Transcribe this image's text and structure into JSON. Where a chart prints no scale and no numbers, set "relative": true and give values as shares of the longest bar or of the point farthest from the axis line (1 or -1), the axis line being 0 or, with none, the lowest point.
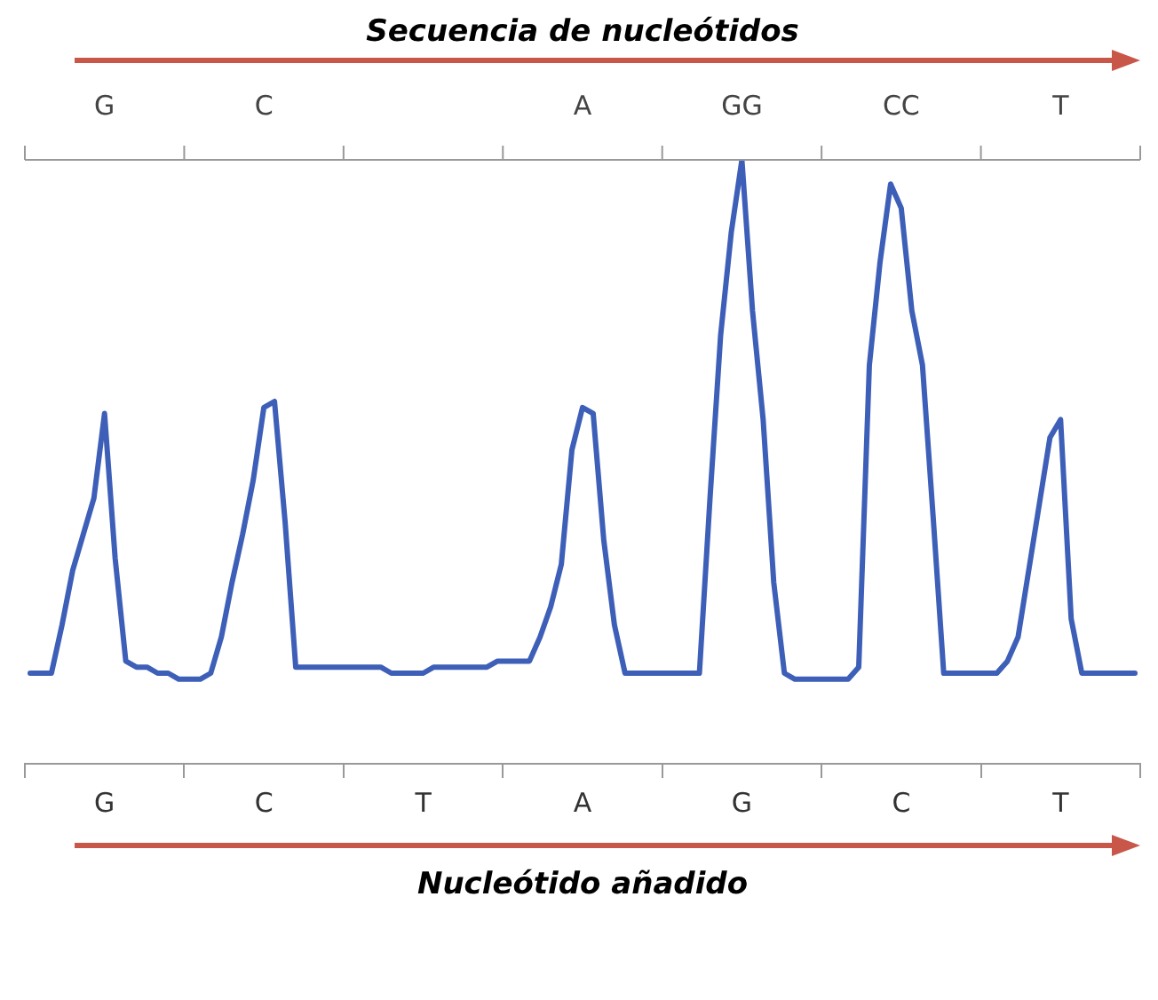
{
  "chart_data": {
    "type": "line",
    "relative": true,
    "x2label": "Secuencia de nucleótidos",
    "xlabel": "Nucleótido añadido",
    "categories": [
      null,
      null,
      null,
      null,
      null,
      null,
      null,
      "G",
      null,
      null,
      null,
      null,
      null,
      null,
      null,
      null,
      null,
      null,
      null,
      null,
      null,
      null,
      "C",
      null,
      null,
      null,
      null,
      null,
      null,
      null,
      null,
      null,
      null,
      null,
      null,
      null,
      null,
      "T",
      null,
      null,
      null,
      null,
      null,
      null,
      null,
      null,
      null,
      null,
      null,
      null,
      null,
      null,
      "A",
      null,
      null,
      null,
      null,
      null,
      null,
      null,
      null,
      null,
      null,
      null,
      null,
      null,
      null,
      "G",
      null,
      null,
      null,
      null,
      null,
      null,
      null,
      null,
      null,
      null,
      null,
      null,
      null,
      null,
      "C",
      null,
      null,
      null,
      null,
      null,
      null,
      null,
      null,
      null,
      null,
      null,
      null,
      null,
      null,
      "T",
      null,
      null,
      null,
      null,
      null,
      null,
      null
    ],
    "annotations": [
      "G",
      "C",
      "A",
      "GG",
      "CC",
      "T"
    ],
    "series": [
      {
        "color": "#3d5fb8",
        "values": [
          0.15,
          0.15,
          0.15,
          0.23,
          0.32,
          0.38,
          0.44,
          0.58,
          0.34,
          0.17,
          0.16,
          0.16,
          0.15,
          0.15,
          0.14,
          0.14,
          0.14,
          0.15,
          0.21,
          0.3,
          0.38,
          0.47,
          0.59,
          0.6,
          0.4,
          0.16,
          0.16,
          0.16,
          0.16,
          0.16,
          0.16,
          0.16,
          0.16,
          0.16,
          0.15,
          0.15,
          0.15,
          0.15,
          0.16,
          0.16,
          0.16,
          0.16,
          0.16,
          0.16,
          0.17,
          0.17,
          0.17,
          0.17,
          0.21,
          0.26,
          0.33,
          0.52,
          0.59,
          0.58,
          0.37,
          0.23,
          0.15,
          0.15,
          0.15,
          0.15,
          0.15,
          0.15,
          0.15,
          0.15,
          0.44,
          0.71,
          0.88,
          1.0,
          0.75,
          0.57,
          0.3,
          0.15,
          0.14,
          0.14,
          0.14,
          0.14,
          0.14,
          0.14,
          0.16,
          0.66,
          0.83,
          0.96,
          0.92,
          0.75,
          0.66,
          0.41,
          0.15,
          0.15,
          0.15,
          0.15,
          0.15,
          0.15,
          0.17,
          0.21,
          0.32,
          0.43,
          0.54,
          0.57,
          0.24,
          0.15,
          0.15,
          0.15,
          0.15,
          0.15,
          0.15
        ]
      }
    ],
    "grid": false,
    "legend": false,
    "marker": "none",
    "line_style": "solid"
  }
}
